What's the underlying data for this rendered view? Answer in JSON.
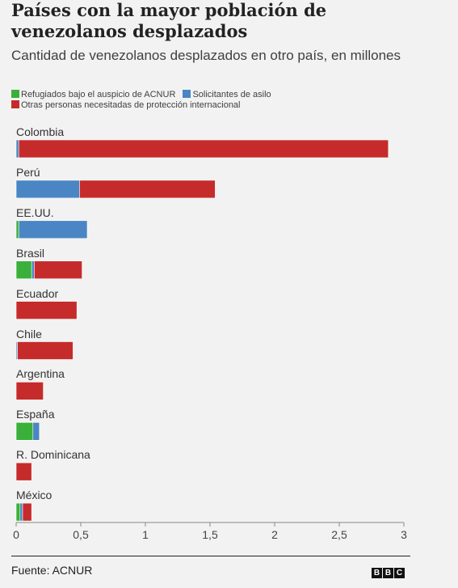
{
  "title": "Países con la mayor población de venezolanos desplazados",
  "subtitle": "Cantidad de venezolanos desplazados en otro país, en millones",
  "legend": [
    {
      "name": "Refugiados bajo el auspicio de ACNUR",
      "color": "#3ab03a"
    },
    {
      "name": "Solicitantes de asilo",
      "color": "#4a86c3"
    },
    {
      "name": "Otras personas necesitadas de protección internacional",
      "color": "#c62b2b"
    }
  ],
  "source": "Fuente: ACNUR",
  "logo": [
    "B",
    "B",
    "C"
  ],
  "chart_data": {
    "type": "bar",
    "orientation": "horizontal",
    "stacked": true,
    "categories": [
      "Colombia",
      "Perú",
      "EE.UU.",
      "Brasil",
      "Ecuador",
      "Chile",
      "Argentina",
      "España",
      "R. Dominicana",
      "México"
    ],
    "series": [
      {
        "name": "Refugiados bajo el auspicio de ACNUR",
        "color": "#3ab03a",
        "values": [
          0.0,
          0.0,
          0.02,
          0.12,
          0.0,
          0.0,
          0.0,
          0.13,
          0.0,
          0.03
        ]
      },
      {
        "name": "Solicitantes de asilo",
        "color": "#4a86c3",
        "values": [
          0.02,
          0.49,
          0.53,
          0.02,
          0.0,
          0.01,
          0.0,
          0.05,
          0.0,
          0.02
        ]
      },
      {
        "name": "Otras personas necesitadas de protección internacional",
        "color": "#c62b2b",
        "values": [
          2.86,
          1.05,
          0.0,
          0.37,
          0.47,
          0.43,
          0.21,
          0.0,
          0.12,
          0.07
        ]
      }
    ],
    "xlim": [
      0,
      3
    ],
    "xticks": [
      "0",
      "0,5",
      "1",
      "1,5",
      "2",
      "2,5",
      "3"
    ],
    "xtick_values": [
      0,
      0.5,
      1,
      1.5,
      2,
      2.5,
      3
    ]
  }
}
